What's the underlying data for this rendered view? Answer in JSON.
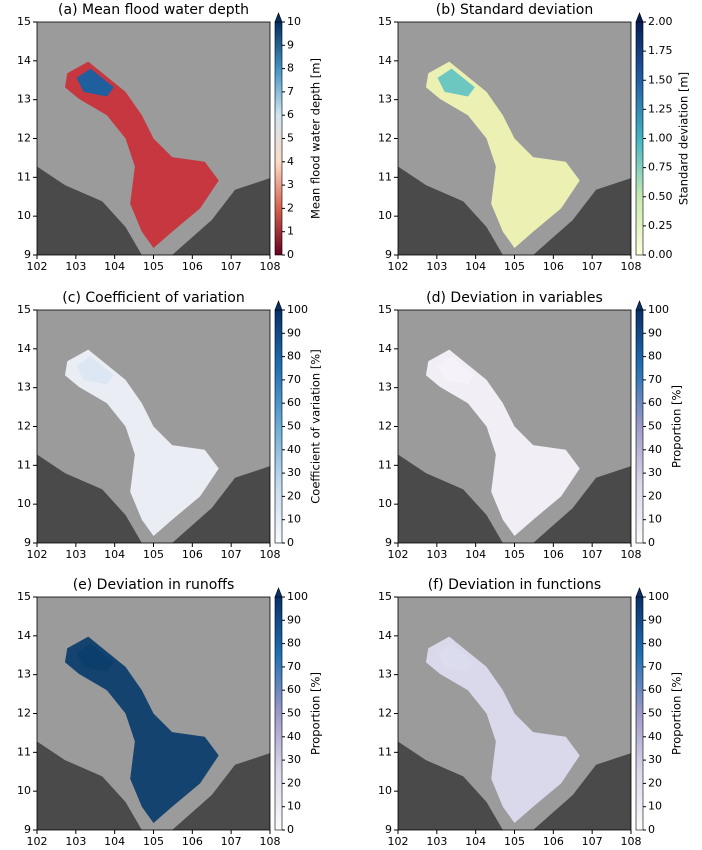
{
  "chart_data": [
    {
      "type": "map",
      "title": "(a) Mean flood water depth",
      "xlim": [
        102,
        108
      ],
      "xticks": [
        102,
        103,
        104,
        105,
        106,
        107,
        108
      ],
      "ylim": [
        9,
        15
      ],
      "yticks": [
        9,
        10,
        11,
        12,
        13,
        14,
        15
      ],
      "colorbar": {
        "label": "Mean flood water depth [m]",
        "lim": [
          0,
          10
        ],
        "ticks": [
          0,
          1,
          2,
          3,
          4,
          5,
          6,
          7,
          8,
          9,
          10
        ],
        "colors": [
          "#67001f",
          "#d6604d",
          "#fddbc7",
          "#d1e5f0",
          "#4393c3",
          "#053061"
        ]
      }
    },
    {
      "type": "map",
      "title": "(b) Standard deviation",
      "xlim": [
        102,
        108
      ],
      "xticks": [
        102,
        103,
        104,
        105,
        106,
        107,
        108
      ],
      "ylim": [
        9,
        15
      ],
      "yticks": [
        9,
        10,
        11,
        12,
        13,
        14,
        15
      ],
      "colorbar": {
        "label": "Standard deviation [m]",
        "lim": [
          0,
          2
        ],
        "ticks": [
          {
            "value": 0,
            "label": "0.00"
          },
          0.25,
          {
            "value": 0.5,
            "label": "0.50"
          },
          0.75,
          {
            "value": 1,
            "label": "1.00"
          },
          1.25,
          {
            "value": 1.5,
            "label": "1.50"
          },
          1.75,
          {
            "value": 2,
            "label": "2.00"
          }
        ],
        "colors": [
          "#ffffd9",
          "#c7e9b4",
          "#41b6c4",
          "#225ea8",
          "#081d58"
        ]
      }
    },
    {
      "type": "map",
      "title": "(c) Coefficient of variation",
      "xlim": [
        102,
        108
      ],
      "xticks": [
        102,
        103,
        104,
        105,
        106,
        107,
        108
      ],
      "ylim": [
        9,
        15
      ],
      "yticks": [
        9,
        10,
        11,
        12,
        13,
        14,
        15
      ],
      "colorbar": {
        "label": "Coefficient of variation [%]",
        "lim": [
          0,
          100
        ],
        "ticks": [
          0,
          10,
          20,
          30,
          40,
          50,
          60,
          70,
          80,
          90,
          100
        ],
        "colors": [
          "#f7fbff",
          "#c6dbef",
          "#6baed6",
          "#2171b5",
          "#08306b"
        ]
      }
    },
    {
      "type": "map",
      "title": "(d) Deviation in variables",
      "xlim": [
        102,
        108
      ],
      "xticks": [
        102,
        103,
        104,
        105,
        106,
        107,
        108
      ],
      "ylim": [
        9,
        15
      ],
      "yticks": [
        9,
        10,
        11,
        12,
        13,
        14,
        15
      ],
      "colorbar": {
        "label": "Proportion [%]",
        "lim": [
          0,
          100
        ],
        "ticks": [
          0,
          10,
          20,
          30,
          40,
          50,
          60,
          70,
          80,
          90,
          100
        ],
        "colors": [
          "#fcfbfd",
          "#dadaeb",
          "#9e9ac8",
          "#2171b5",
          "#08306b"
        ]
      }
    },
    {
      "type": "map",
      "title": "(e) Deviation in runoffs",
      "xlim": [
        102,
        108
      ],
      "xticks": [
        102,
        103,
        104,
        105,
        106,
        107,
        108
      ],
      "ylim": [
        9,
        15
      ],
      "yticks": [
        9,
        10,
        11,
        12,
        13,
        14,
        15
      ],
      "colorbar": {
        "label": "Proportion [%]",
        "lim": [
          0,
          100
        ],
        "ticks": [
          0,
          10,
          20,
          30,
          40,
          50,
          60,
          70,
          80,
          90,
          100
        ],
        "colors": [
          "#fcfbfd",
          "#dadaeb",
          "#9e9ac8",
          "#2171b5",
          "#08306b"
        ]
      }
    },
    {
      "type": "map",
      "title": "(f) Deviation in functions",
      "xlim": [
        102,
        108
      ],
      "xticks": [
        102,
        103,
        104,
        105,
        106,
        107,
        108
      ],
      "ylim": [
        9,
        15
      ],
      "yticks": [
        9,
        10,
        11,
        12,
        13,
        14,
        15
      ],
      "colorbar": {
        "label": "Proportion [%]",
        "lim": [
          0,
          100
        ],
        "ticks": [
          0,
          10,
          20,
          30,
          40,
          50,
          60,
          70,
          80,
          90,
          100
        ],
        "colors": [
          "#fcfbfd",
          "#dadaeb",
          "#9e9ac8",
          "#2171b5",
          "#08306b"
        ]
      }
    }
  ]
}
